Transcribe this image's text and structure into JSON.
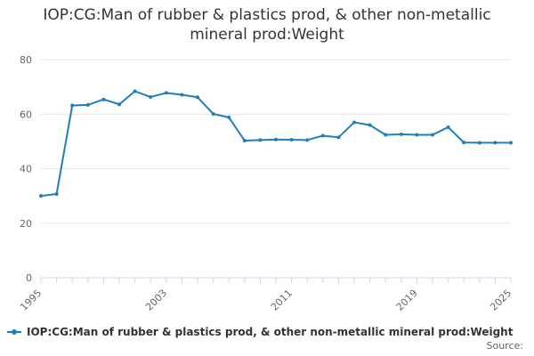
{
  "title_lines": [
    "IOP:CG:Man of rubber & plastics prod, & other non-metallic",
    "mineral prod:Weight"
  ],
  "source_label": "Source:",
  "colors": {
    "series": "#1f7fbd",
    "grid": "#e6e6e6",
    "axis": "#ccd6eb",
    "text": "#333333",
    "tick": "#666666"
  },
  "chart_data": {
    "type": "line",
    "title": "IOP:CG:Man of rubber & plastics prod, & other non-metallic mineral prod:Weight",
    "xlabel": "",
    "ylabel": "",
    "ylim": [
      0,
      80
    ],
    "xlim": [
      1995,
      2025
    ],
    "yticks": [
      0,
      20,
      40,
      60,
      80
    ],
    "xticks": [
      1995,
      2003,
      2011,
      2019,
      2025
    ],
    "grid": true,
    "legend_position": "bottom",
    "x": [
      1995,
      1996,
      1997,
      1998,
      1999,
      2000,
      2001,
      2002,
      2003,
      2004,
      2005,
      2006,
      2007,
      2008,
      2009,
      2010,
      2011,
      2012,
      2013,
      2014,
      2015,
      2016,
      2017,
      2018,
      2019,
      2020,
      2021,
      2022,
      2023,
      2024,
      2025
    ],
    "series": [
      {
        "name": "IOP:CG:Man of rubber & plastics prod, & other non-metallic mineral prod:Weight",
        "values": [
          30.0,
          30.7,
          63.2,
          63.4,
          65.4,
          63.6,
          68.4,
          66.3,
          67.8,
          67.1,
          66.2,
          60.1,
          58.8,
          50.3,
          50.5,
          50.7,
          50.6,
          50.5,
          52.1,
          51.5,
          57.0,
          56.0,
          52.4,
          52.6,
          52.4,
          52.4,
          55.2,
          49.6,
          49.5,
          49.5,
          49.5
        ]
      }
    ]
  }
}
